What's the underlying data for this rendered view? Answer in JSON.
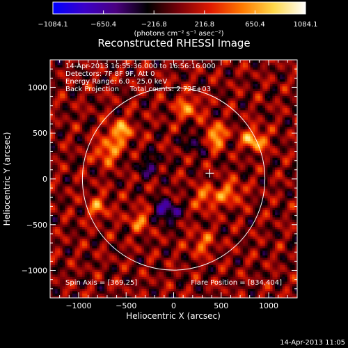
{
  "chart_data": {
    "type": "heatmap",
    "title": "Reconstructed RHESSI Image",
    "xlabel": "Heliocentric X (arcsec)",
    "ylabel": "Heliocentric Y (arcsec)",
    "xlim": [
      -1300,
      1300
    ],
    "ylim": [
      -1300,
      1300
    ],
    "xticks": [
      -1000,
      -500,
      0,
      500,
      1000
    ],
    "yticks": [
      -1000,
      -500,
      0,
      500,
      1000
    ],
    "xtick_labels": [
      "−1000",
      "−500",
      "0",
      "500",
      "1000"
    ],
    "ytick_labels": [
      "−1000",
      "−500",
      "0",
      "500",
      "1000"
    ],
    "colorbar": {
      "min": -1084.1,
      "max": 1084.1,
      "ticks": [
        -1084.1,
        -650.4,
        -216.8,
        216.8,
        650.4,
        1084.1
      ],
      "tick_labels": [
        "−1084.1",
        "−650.4",
        "−216.8",
        "216.8",
        "650.4",
        "1084.1"
      ],
      "unit_label": "(photons cm⁻² s⁻¹ asec⁻²)",
      "colormap_stops": [
        "#0000ff",
        "#3b00c8",
        "#4a007f",
        "#000000",
        "#7a0008",
        "#e11a00",
        "#ff7a00",
        "#ffd84a",
        "#ffffff"
      ]
    },
    "info_lines": [
      "14-Apr-2013 16:55:36.000 to 16:56:16.000",
      "Detectors: 7F 8F 9F, Att 0",
      "Energy Range: 6.0 - 25.0 keV",
      "Back Projection     Total counts: 2.72E+03"
    ],
    "solar_disk": {
      "center": [
        0,
        0
      ],
      "radius_arcsec": 960
    },
    "cross_marker": [
      380,
      60
    ],
    "hotspots": [
      {
        "x": 834,
        "y": 404,
        "intensity": 1084
      },
      {
        "x": 420,
        "y": 470,
        "intensity": 800
      },
      {
        "x": -560,
        "y": 520,
        "intensity": 700
      },
      {
        "x": -700,
        "y": 300,
        "intensity": 600
      },
      {
        "x": 150,
        "y": 780,
        "intensity": 550
      },
      {
        "x": 600,
        "y": -150,
        "intensity": 500
      },
      {
        "x": -350,
        "y": -450,
        "intensity": 450
      },
      {
        "x": 350,
        "y": -200,
        "intensity": 500
      },
      {
        "x": -800,
        "y": -300,
        "intensity": 450
      },
      {
        "x": 300,
        "y": -700,
        "intensity": 420
      }
    ],
    "coldspots": [
      {
        "x": -80,
        "y": -350,
        "intensity": -700
      },
      {
        "x": 250,
        "y": 430,
        "intensity": -500
      },
      {
        "x": -250,
        "y": 150,
        "intensity": -400
      },
      {
        "x": 800,
        "y": 350,
        "intensity": -450
      }
    ],
    "bottom_left_text": "Spin Axis = [369,25]",
    "bottom_right_text": "Flare Position = [834,404]"
  },
  "timestamp": "14-Apr-2013 11:05"
}
